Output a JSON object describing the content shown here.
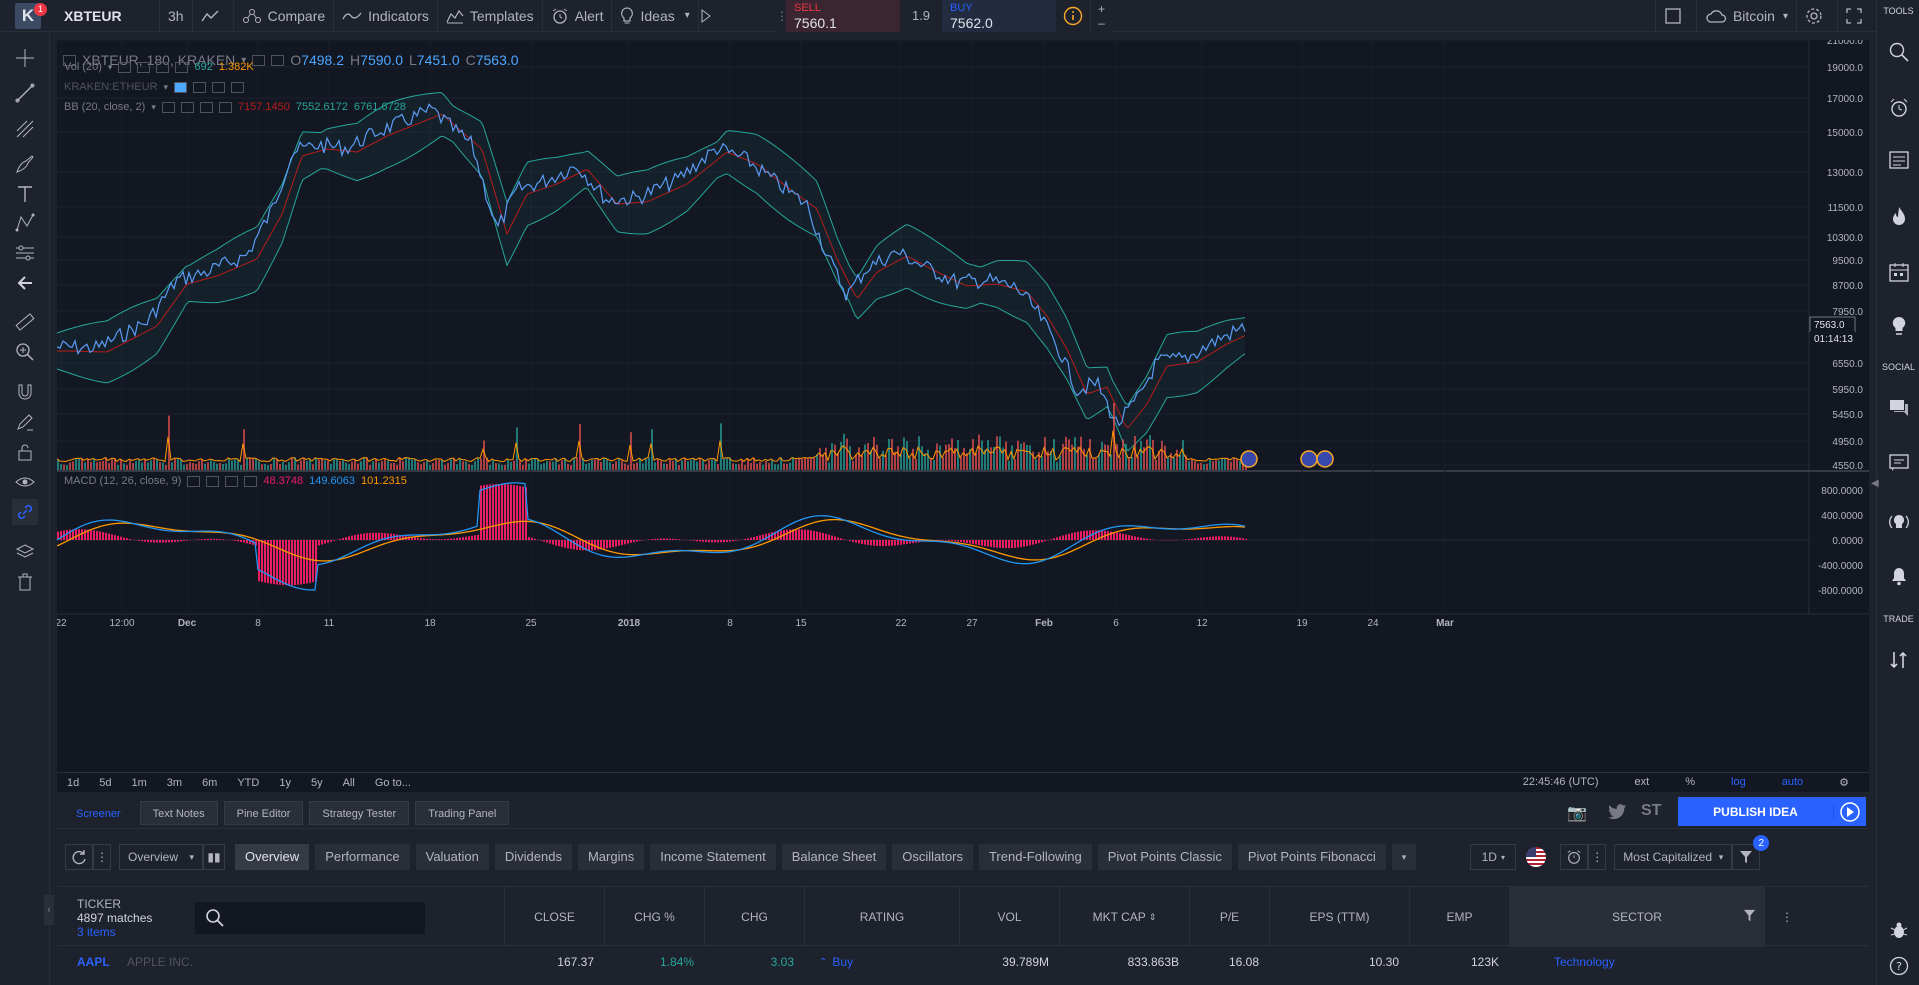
{
  "topbar": {
    "logo_letter": "K",
    "notification_count": "1",
    "symbol": "XBTEUR",
    "interval": "3h",
    "compare": "Compare",
    "indicators": "Indicators",
    "templates": "Templates",
    "alert": "Alert",
    "ideas": "Ideas",
    "account": "Bitcoin"
  },
  "trade": {
    "sell_label": "SELL",
    "sell_price": "7560.1",
    "spread": "1.9",
    "buy_label": "BUY",
    "buy_price": "7562.0"
  },
  "legend": {
    "main_symbol": "XBTEUR, 180, KRAKEN",
    "o_label": "O",
    "open": "7498.2",
    "h_label": "H",
    "high": "7590.0",
    "l_label": "L",
    "low": "7451.0",
    "c_label": "C",
    "close": "7563.0",
    "vol_label": "Vol (20)",
    "vol_value": "692",
    "vol_ma": "1.382K",
    "compare_label": "KRAKEN:ETHEUR",
    "bb_label": "BB (20, close, 2)",
    "bb_basis": "7157.1450",
    "bb_upper": "7552.6172",
    "bb_lower": "6761.6728",
    "macd_label": "MACD (12, 26, close, 9)",
    "macd_hist": "48.3748",
    "macd_value": "149.6063",
    "macd_signal": "101.2315"
  },
  "price_axis": {
    "labels": [
      "21000.0",
      "19000.0",
      "17000.0",
      "15000.0",
      "13000.0",
      "11500.0",
      "10300.0",
      "9500.0",
      "8700.0",
      "7950.0",
      "6550.0",
      "5950.0",
      "5450.0",
      "4950.0",
      "4550.0"
    ],
    "last_price": "7563.0",
    "countdown": "01:14:13"
  },
  "macd_axis": {
    "labels": [
      "800.0000",
      "400.0000",
      "0.0000",
      "-400.0000",
      "-800.0000"
    ]
  },
  "time_axis": {
    "labels": [
      "22",
      "12:00",
      "Dec",
      "8",
      "11",
      "18",
      "25",
      "2018",
      "8",
      "15",
      "22",
      "27",
      "Feb",
      "6",
      "12",
      "19",
      "24",
      "Mar"
    ]
  },
  "date_range": {
    "buttons": [
      "1d",
      "5d",
      "1m",
      "3m",
      "6m",
      "YTD",
      "1y",
      "5y",
      "All",
      "Go to..."
    ],
    "clock": "22:45:46 (UTC)",
    "ext": "ext",
    "percent": "%",
    "log": "log",
    "auto": "auto"
  },
  "bottom_tabs": [
    "Screener",
    "Text Notes",
    "Pine Editor",
    "Strategy Tester",
    "Trading Panel"
  ],
  "publish_label": "PUBLISH IDEA",
  "screener": {
    "view_select": "Overview",
    "tabs": [
      "Overview",
      "Performance",
      "Valuation",
      "Dividends",
      "Margins",
      "Income Statement",
      "Balance Sheet",
      "Oscillators",
      "Trend-Following",
      "Pivot Points Classic",
      "Pivot Points Fibonacci"
    ],
    "interval_select": "1D",
    "sort_select": "Most Capitalized",
    "filter_count": "2",
    "ticker_header": "TICKER",
    "matches": "4897 matches",
    "items": "3 items",
    "columns": [
      "CLOSE",
      "CHG %",
      "CHG",
      "RATING",
      "VOL",
      "MKT CAP",
      "P/E",
      "EPS (TTM)",
      "EMP",
      "SECTOR"
    ],
    "row": {
      "ticker": "AAPL",
      "name": "APPLE INC.",
      "close": "167.37",
      "chg_pct": "1.84%",
      "chg": "3.03",
      "rating": "Buy",
      "vol": "39.789M",
      "mkt_cap": "833.863B",
      "pe": "16.08",
      "eps": "10.30",
      "emp": "123K",
      "sector": "Technology"
    }
  },
  "right_toolbar": {
    "tools_label": "TOOLS",
    "social_label": "SOCIAL",
    "trade_label": "TRADE"
  },
  "colors": {
    "price_line": "#5b9cf6",
    "bb_band": "#26a69a",
    "bb_basis": "#b71c1c",
    "vol_up": "#26a69a",
    "vol_down": "#ef5350",
    "macd_line": "#2196f3",
    "signal_line": "#ff9800",
    "macd_hist": "#e91e63",
    "accent": "#2962ff"
  }
}
